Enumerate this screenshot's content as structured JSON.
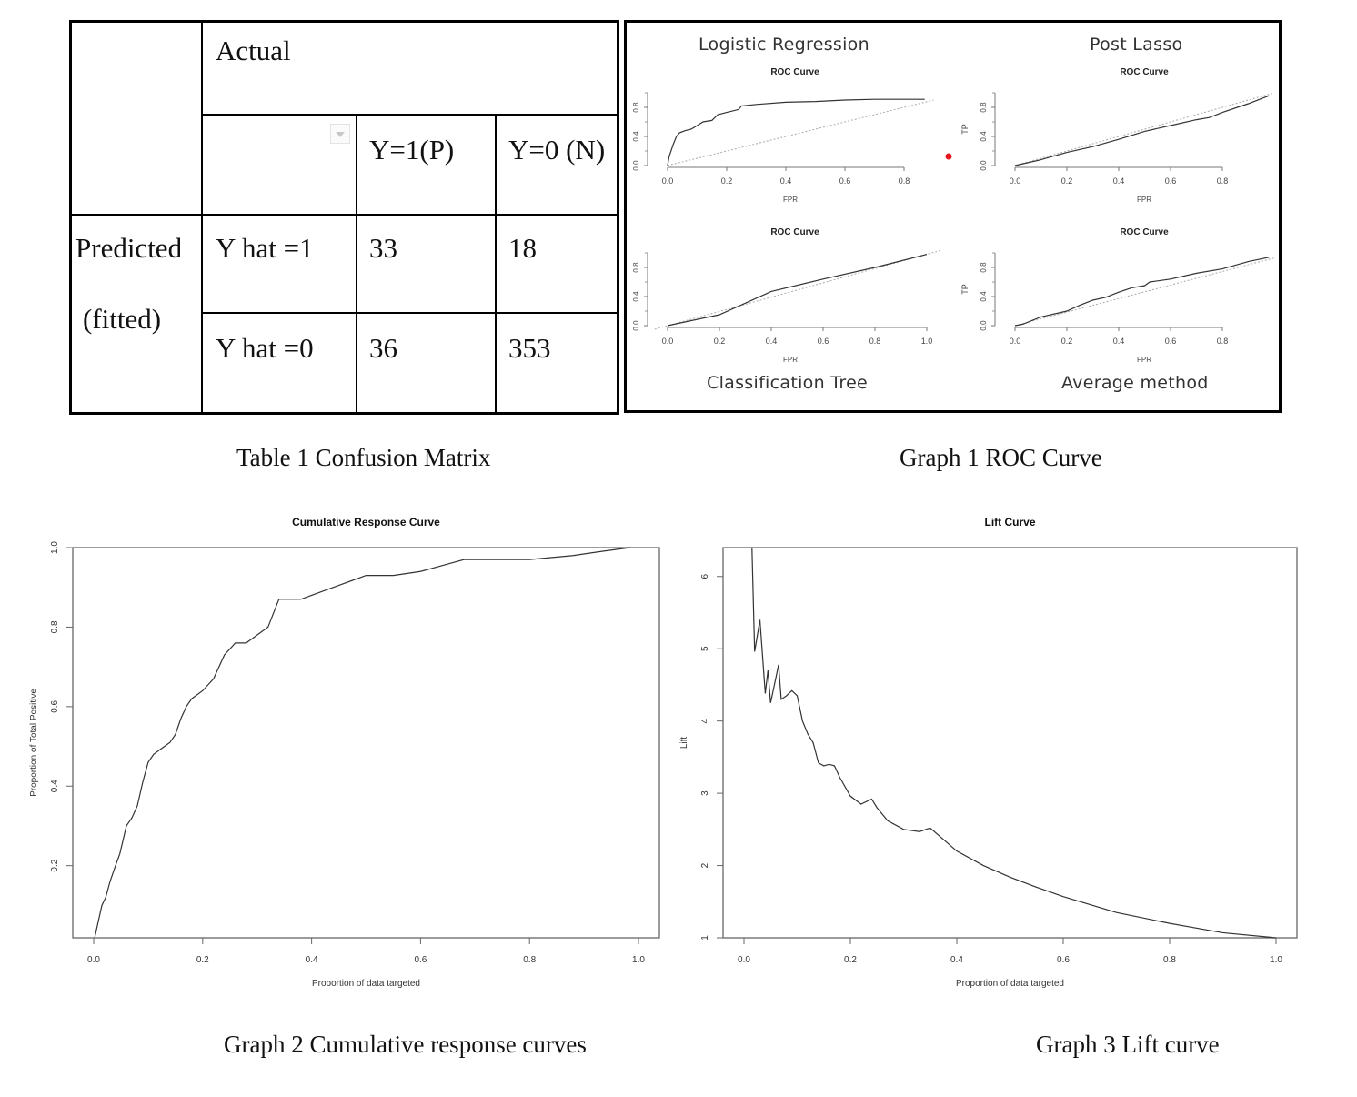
{
  "table1": {
    "caption": "Table 1 Confusion Matrix",
    "actual_label": "Actual",
    "predicted_label_line1": "Predicted",
    "predicted_label_line2": "(fitted)",
    "col_headers": [
      "Y=1(P)",
      "Y=0 (N)"
    ],
    "row_headers": [
      "Y hat =1",
      "Y hat =0"
    ],
    "cells": [
      [
        "33",
        "18"
      ],
      [
        "36",
        "353"
      ]
    ],
    "dropdown_icon": "dropdown-arrow-icon"
  },
  "graph1": {
    "caption": "Graph 1 ROC Curve",
    "panels": [
      {
        "heading": "Logistic Regression",
        "title": "ROC Curve",
        "xlabel": "FPR",
        "ylabel": "",
        "xticks": [
          "0.0",
          "0.2",
          "0.4",
          "0.6",
          "0.8"
        ],
        "yticks": [
          "0.0",
          "0.4",
          "0.8"
        ]
      },
      {
        "heading": "Post Lasso",
        "title": "ROC Curve",
        "xlabel": "FPR",
        "ylabel": "TP",
        "xticks": [
          "0.0",
          "0.2",
          "0.4",
          "0.6",
          "0.8"
        ],
        "yticks": [
          "0.0",
          "0.4",
          "0.8"
        ]
      },
      {
        "heading": "Classification Tree",
        "title": "ROC Curve",
        "xlabel": "FPR",
        "ylabel": "",
        "xticks": [
          "0.0",
          "0.2",
          "0.4",
          "0.6",
          "0.8",
          "1.0"
        ],
        "yticks": [
          "0.0",
          "0.4",
          "0.8"
        ]
      },
      {
        "heading": "Average method",
        "title": "ROC Curve",
        "xlabel": "FPR",
        "ylabel": "TP",
        "xticks": [
          "0.0",
          "0.2",
          "0.4",
          "0.6",
          "0.8"
        ],
        "yticks": [
          "0.0",
          "0.4",
          "0.8"
        ]
      }
    ],
    "marker_color": "#e8141e"
  },
  "graph2": {
    "caption": "Graph 2 Cumulative response curves"
  },
  "graph3": {
    "caption": "Graph 3 Lift curve"
  },
  "chart_data": [
    {
      "id": "roc_logistic",
      "type": "line",
      "title": "ROC Curve",
      "xlabel": "FPR",
      "ylabel": "",
      "xlim": [
        0,
        0.9
      ],
      "ylim": [
        0,
        1
      ],
      "series": [
        {
          "name": "ROC",
          "x": [
            0,
            0.005,
            0.01,
            0.02,
            0.03,
            0.04,
            0.06,
            0.08,
            0.1,
            0.12,
            0.15,
            0.17,
            0.2,
            0.24,
            0.25,
            0.3,
            0.4,
            0.5,
            0.6,
            0.7,
            0.8,
            0.87
          ],
          "y": [
            0,
            0.12,
            0.18,
            0.3,
            0.4,
            0.45,
            0.48,
            0.5,
            0.55,
            0.6,
            0.62,
            0.7,
            0.73,
            0.77,
            0.82,
            0.84,
            0.87,
            0.88,
            0.9,
            0.91,
            0.91,
            0.91
          ]
        },
        {
          "name": "diagonal",
          "x": [
            0,
            0.9
          ],
          "y": [
            0,
            0.9
          ]
        }
      ]
    },
    {
      "id": "roc_post_lasso",
      "type": "line",
      "title": "ROC Curve",
      "xlabel": "FPR",
      "ylabel": "TP",
      "xlim": [
        0,
        1
      ],
      "ylim": [
        0,
        1
      ],
      "series": [
        {
          "name": "ROC",
          "x": [
            0,
            0.1,
            0.2,
            0.3,
            0.4,
            0.5,
            0.6,
            0.7,
            0.75,
            0.8,
            0.9,
            0.98
          ],
          "y": [
            0,
            0.08,
            0.18,
            0.26,
            0.36,
            0.47,
            0.55,
            0.63,
            0.66,
            0.73,
            0.85,
            0.96
          ]
        },
        {
          "name": "diagonal",
          "x": [
            0,
            1
          ],
          "y": [
            0,
            1
          ]
        }
      ]
    },
    {
      "id": "roc_classification_tree",
      "type": "line",
      "title": "ROC Curve",
      "xlabel": "FPR",
      "ylabel": "",
      "xlim": [
        0,
        1.05
      ],
      "ylim": [
        0,
        1
      ],
      "series": [
        {
          "name": "ROC",
          "x": [
            0,
            0.2,
            0.4,
            0.6,
            0.8,
            1.0
          ],
          "y": [
            0,
            0.15,
            0.47,
            0.64,
            0.8,
            0.98
          ]
        },
        {
          "name": "diagonal",
          "x": [
            -0.05,
            1.05
          ],
          "y": [
            -0.05,
            1.03
          ]
        }
      ]
    },
    {
      "id": "roc_average",
      "type": "line",
      "title": "ROC Curve",
      "xlabel": "FPR",
      "ylabel": "TP",
      "xlim": [
        0,
        1
      ],
      "ylim": [
        0,
        1
      ],
      "series": [
        {
          "name": "ROC",
          "x": [
            0,
            0.03,
            0.1,
            0.2,
            0.25,
            0.3,
            0.35,
            0.4,
            0.45,
            0.5,
            0.52,
            0.6,
            0.7,
            0.8,
            0.9,
            0.98
          ],
          "y": [
            0,
            0.02,
            0.12,
            0.2,
            0.28,
            0.35,
            0.39,
            0.46,
            0.52,
            0.55,
            0.6,
            0.64,
            0.72,
            0.78,
            0.88,
            0.94
          ]
        },
        {
          "name": "diagonal",
          "x": [
            0,
            1
          ],
          "y": [
            0,
            0.93
          ]
        }
      ]
    },
    {
      "id": "cumulative_response",
      "type": "line",
      "title": "Cumulative Response Curve",
      "xlabel": "Proportion of data targeted",
      "ylabel": "Proportion of Total Positive",
      "xlim": [
        0,
        1
      ],
      "ylim": [
        0.0185,
        1.0
      ],
      "xticks": [
        "0.0",
        "0.2",
        "0.4",
        "0.6",
        "0.8",
        "1.0"
      ],
      "yticks": [
        "0.2",
        "0.4",
        "0.6",
        "0.8",
        "1.0"
      ],
      "series": [
        {
          "name": "CRC",
          "x": [
            0.002,
            0.015,
            0.022,
            0.03,
            0.04,
            0.048,
            0.06,
            0.07,
            0.08,
            0.09,
            0.1,
            0.11,
            0.12,
            0.13,
            0.14,
            0.15,
            0.16,
            0.17,
            0.18,
            0.2,
            0.22,
            0.24,
            0.26,
            0.28,
            0.3,
            0.32,
            0.34,
            0.36,
            0.38,
            0.4,
            0.42,
            0.44,
            0.46,
            0.5,
            0.55,
            0.6,
            0.64,
            0.68,
            0.8,
            0.88,
            0.93,
            0.985
          ],
          "y": [
            0.02,
            0.1,
            0.12,
            0.16,
            0.2,
            0.23,
            0.3,
            0.32,
            0.35,
            0.41,
            0.46,
            0.48,
            0.49,
            0.5,
            0.51,
            0.53,
            0.57,
            0.6,
            0.62,
            0.64,
            0.67,
            0.73,
            0.76,
            0.76,
            0.78,
            0.8,
            0.87,
            0.87,
            0.87,
            0.88,
            0.89,
            0.9,
            0.91,
            0.93,
            0.93,
            0.94,
            0.955,
            0.97,
            0.97,
            0.98,
            0.99,
            1.0
          ]
        }
      ]
    },
    {
      "id": "lift",
      "type": "line",
      "title": "Lift Curve",
      "xlabel": "Proportion of data targeted",
      "ylabel": "Lift",
      "xlim": [
        0,
        1
      ],
      "ylim": [
        1,
        6.4
      ],
      "xticks": [
        "0.0",
        "0.2",
        "0.4",
        "0.6",
        "0.8",
        "1.0"
      ],
      "yticks": [
        "1",
        "2",
        "3",
        "4",
        "5",
        "6"
      ],
      "series": [
        {
          "name": "Lift",
          "x": [
            0.015,
            0.02,
            0.03,
            0.04,
            0.045,
            0.05,
            0.06,
            0.065,
            0.07,
            0.08,
            0.09,
            0.1,
            0.11,
            0.12,
            0.13,
            0.14,
            0.15,
            0.16,
            0.17,
            0.18,
            0.2,
            0.22,
            0.24,
            0.25,
            0.27,
            0.3,
            0.33,
            0.35,
            0.4,
            0.45,
            0.5,
            0.55,
            0.6,
            0.65,
            0.7,
            0.8,
            0.9,
            1.0
          ],
          "y": [
            6.4,
            4.96,
            5.4,
            4.38,
            4.7,
            4.25,
            4.6,
            4.78,
            4.3,
            4.35,
            4.42,
            4.35,
            4.0,
            3.82,
            3.7,
            3.42,
            3.38,
            3.4,
            3.38,
            3.22,
            2.96,
            2.85,
            2.92,
            2.8,
            2.62,
            2.5,
            2.47,
            2.52,
            2.2,
            2.0,
            1.84,
            1.7,
            1.57,
            1.46,
            1.35,
            1.2,
            1.07,
            1.0
          ]
        }
      ]
    }
  ]
}
